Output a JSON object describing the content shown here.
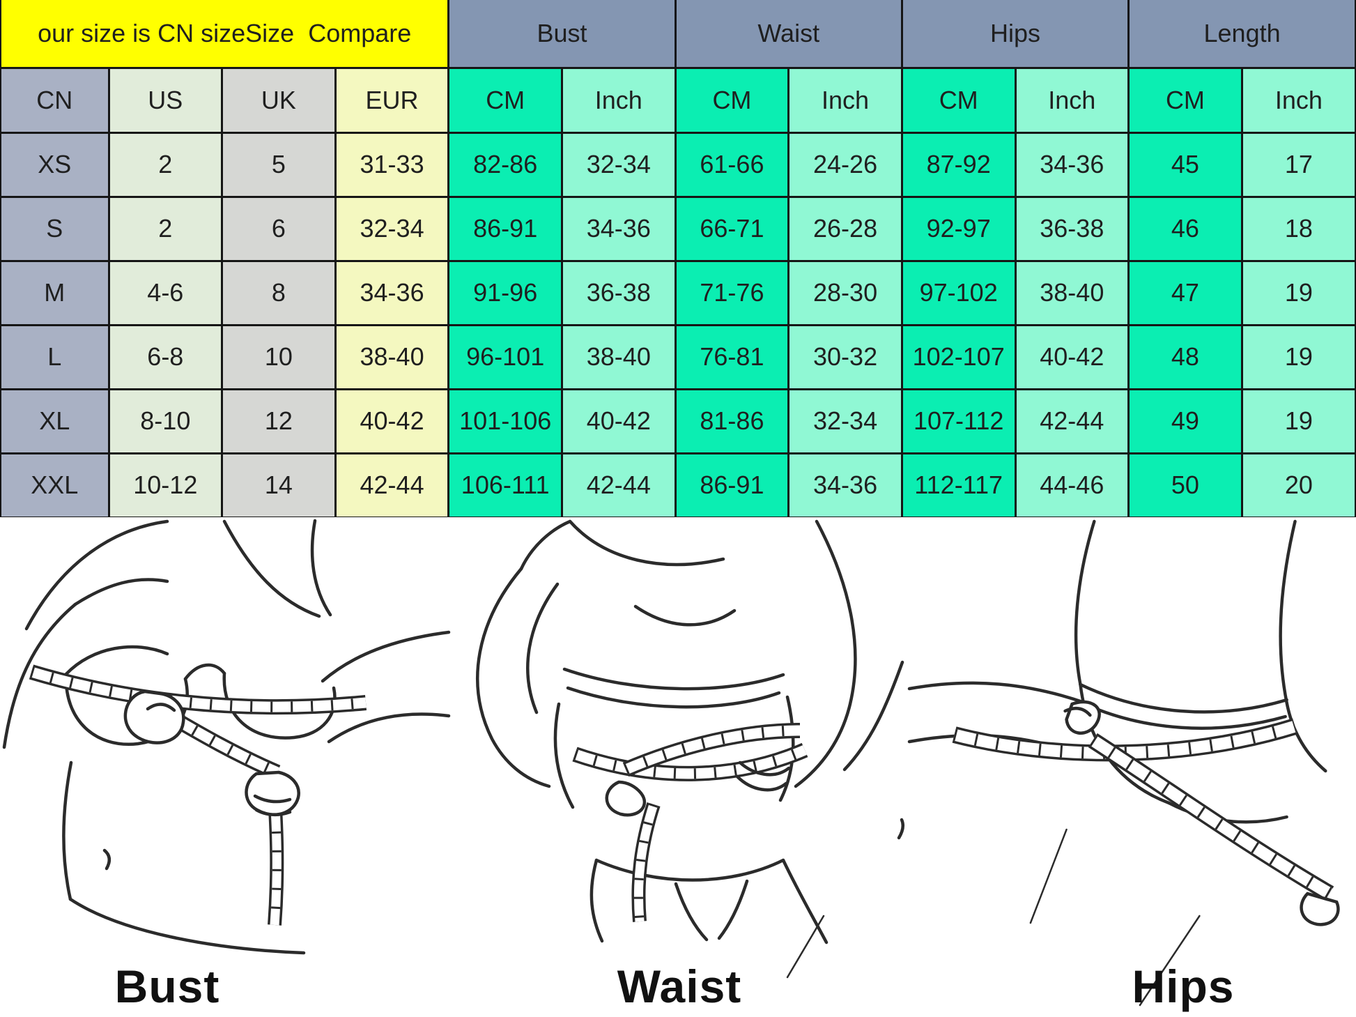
{
  "table": {
    "title": "our size is CN sizeSize  Compare",
    "group_headers": [
      "Bust",
      "Waist",
      "Hips",
      "Length"
    ],
    "column_headers": [
      "CN",
      "US",
      "UK",
      "EUR",
      "CM",
      "Inch",
      "CM",
      "Inch",
      "CM",
      "Inch",
      "CM",
      "Inch"
    ],
    "rows": [
      [
        "XS",
        "2",
        "5",
        "31-33",
        "82-86",
        "32-34",
        "61-66",
        "24-26",
        "87-92",
        "34-36",
        "45",
        "17"
      ],
      [
        "S",
        "2",
        "6",
        "32-34",
        "86-91",
        "34-36",
        "66-71",
        "26-28",
        "92-97",
        "36-38",
        "46",
        "18"
      ],
      [
        "M",
        "4-6",
        "8",
        "34-36",
        "91-96",
        "36-38",
        "71-76",
        "28-30",
        "97-102",
        "38-40",
        "47",
        "19"
      ],
      [
        "L",
        "6-8",
        "10",
        "38-40",
        "96-101",
        "38-40",
        "76-81",
        "30-32",
        "102-107",
        "40-42",
        "48",
        "19"
      ],
      [
        "XL",
        "8-10",
        "12",
        "40-42",
        "101-106",
        "40-42",
        "81-86",
        "32-34",
        "107-112",
        "42-44",
        "49",
        "19"
      ],
      [
        "XXL",
        "10-12",
        "14",
        "42-44",
        "106-111",
        "42-44",
        "86-91",
        "34-36",
        "112-117",
        "44-46",
        "50",
        "20"
      ]
    ]
  },
  "illustrations": [
    {
      "label": "Bust"
    },
    {
      "label": "Waist"
    },
    {
      "label": "Hips"
    }
  ],
  "colors": {
    "title_bg": "#FFFF00",
    "title_text": "#213100",
    "group_header_bg": "#8496B2",
    "cn_bg": "#A9B1C4",
    "us_bg": "#E1ECDA",
    "uk_bg": "#D6D7D4",
    "eur_bg": "#F4F8C0",
    "cm_bg": "#0BEEB2",
    "inch_bg": "#90F8D4",
    "border": "#161616",
    "cell_text": "#1F1F1F",
    "line_art": "#2B2B2B"
  },
  "chart_data": {
    "type": "table",
    "title": "our size is CN sizeSize  Compare",
    "columns": [
      "CN",
      "US",
      "UK",
      "EUR",
      "Bust CM",
      "Bust Inch",
      "Waist CM",
      "Waist Inch",
      "Hips CM",
      "Hips Inch",
      "Length CM",
      "Length Inch"
    ],
    "rows": [
      [
        "XS",
        "2",
        "5",
        "31-33",
        "82-86",
        "32-34",
        "61-66",
        "24-26",
        "87-92",
        "34-36",
        "45",
        "17"
      ],
      [
        "S",
        "2",
        "6",
        "32-34",
        "86-91",
        "34-36",
        "66-71",
        "26-28",
        "92-97",
        "36-38",
        "46",
        "18"
      ],
      [
        "M",
        "4-6",
        "8",
        "34-36",
        "91-96",
        "36-38",
        "71-76",
        "28-30",
        "97-102",
        "38-40",
        "47",
        "19"
      ],
      [
        "L",
        "6-8",
        "10",
        "38-40",
        "96-101",
        "38-40",
        "76-81",
        "30-32",
        "102-107",
        "40-42",
        "48",
        "19"
      ],
      [
        "XL",
        "8-10",
        "12",
        "40-42",
        "101-106",
        "40-42",
        "81-86",
        "32-34",
        "107-112",
        "42-44",
        "49",
        "19"
      ],
      [
        "XXL",
        "10-12",
        "14",
        "42-44",
        "106-111",
        "42-44",
        "86-91",
        "34-36",
        "112-117",
        "44-46",
        "50",
        "20"
      ]
    ]
  }
}
